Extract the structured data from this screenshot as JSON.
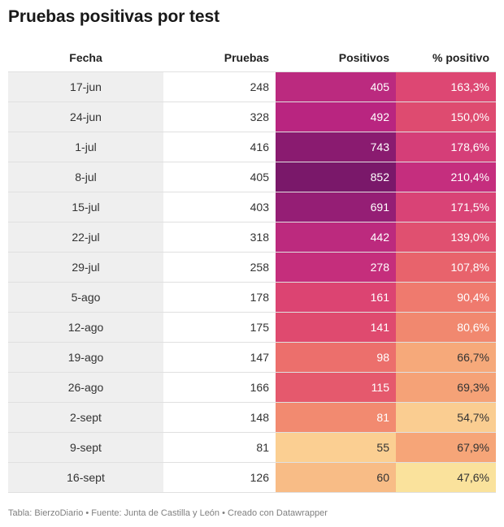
{
  "chart_data": {
    "type": "table",
    "title": "Pruebas positivas por test",
    "columns": [
      "Fecha",
      "Pruebas",
      "Positivos",
      "% positivo"
    ],
    "rows": [
      {
        "fecha": "17-jun",
        "pruebas": "248",
        "positivos": "405",
        "pct": "163,3%",
        "positivos_value": 405,
        "pct_value": 163.3,
        "positivos_color": "#bb2a7f",
        "pct_color": "#dd4773"
      },
      {
        "fecha": "24-jun",
        "pruebas": "328",
        "positivos": "492",
        "pct": "150,0%",
        "positivos_value": 492,
        "pct_value": 150.0,
        "positivos_color": "#b92580",
        "pct_color": "#de4b70"
      },
      {
        "fecha": "1-jul",
        "pruebas": "416",
        "positivos": "743",
        "pct": "178,6%",
        "positivos_value": 743,
        "pct_value": 178.6,
        "positivos_color": "#8a1b70",
        "pct_color": "#d53e78"
      },
      {
        "fecha": "8-jul",
        "pruebas": "405",
        "positivos": "852",
        "pct": "210,4%",
        "positivos_value": 852,
        "pct_value": 210.4,
        "positivos_color": "#7a186a",
        "pct_color": "#c52e7e"
      },
      {
        "fecha": "15-jul",
        "pruebas": "403",
        "positivos": "691",
        "pct": "171,5%",
        "positivos_value": 691,
        "pct_value": 171.5,
        "positivos_color": "#951e75",
        "pct_color": "#d94376"
      },
      {
        "fecha": "22-jul",
        "pruebas": "318",
        "positivos": "442",
        "pct": "139,0%",
        "positivos_value": 442,
        "pct_value": 139.0,
        "positivos_color": "#bc2a7e",
        "pct_color": "#e05070"
      },
      {
        "fecha": "29-jul",
        "pruebas": "258",
        "positivos": "278",
        "pct": "107,8%",
        "positivos_value": 278,
        "pct_value": 107.8,
        "positivos_color": "#c52e7c",
        "pct_color": "#e8636c"
      },
      {
        "fecha": "5-ago",
        "pruebas": "178",
        "positivos": "161",
        "pct": "90,4%",
        "positivos_value": 161,
        "pct_value": 90.4,
        "positivos_color": "#dc4472",
        "pct_color": "#ef7a6e"
      },
      {
        "fecha": "12-ago",
        "pruebas": "175",
        "positivos": "141",
        "pct": "80,6%",
        "positivos_value": 141,
        "pct_value": 80.6,
        "positivos_color": "#df4a6f",
        "pct_color": "#f1886f"
      },
      {
        "fecha": "19-ago",
        "pruebas": "147",
        "positivos": "98",
        "pct": "66,7%",
        "positivos_value": 98,
        "pct_value": 66.7,
        "positivos_color": "#ec6f6c",
        "pct_color": "#f6a97a"
      },
      {
        "fecha": "26-ago",
        "pruebas": "166",
        "positivos": "115",
        "pct": "69,3%",
        "positivos_value": 115,
        "pct_value": 69.3,
        "positivos_color": "#e5596d",
        "pct_color": "#f5a277"
      },
      {
        "fecha": "2-sept",
        "pruebas": "148",
        "positivos": "81",
        "pct": "54,7%",
        "positivos_value": 81,
        "pct_value": 54.7,
        "positivos_color": "#f28a70",
        "pct_color": "#facd91"
      },
      {
        "fecha": "9-sept",
        "pruebas": "81",
        "positivos": "55",
        "pct": "67,9%",
        "positivos_value": 55,
        "pct_value": 67.9,
        "positivos_color": "#fbcf92",
        "pct_color": "#f6a578"
      },
      {
        "fecha": "16-sept",
        "pruebas": "126",
        "positivos": "60",
        "pct": "47,6%",
        "positivos_value": 60,
        "pct_value": 47.6,
        "positivos_color": "#f8bc86",
        "pct_color": "#fae29c"
      }
    ]
  },
  "footer": "Tabla: BierzoDiario • Fuente: Junta de Castilla y León • Creado con Datawrapper"
}
